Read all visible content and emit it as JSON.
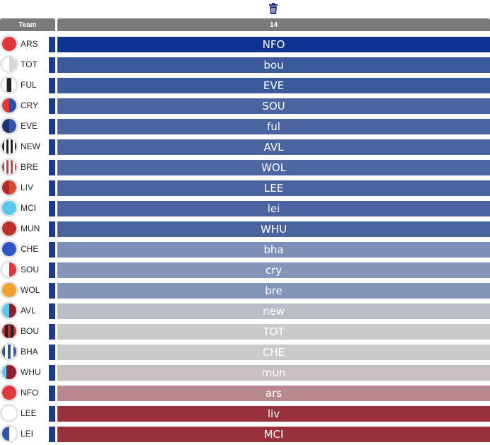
{
  "header": {
    "team_label": "Team",
    "column_label": "14"
  },
  "toolbar": {
    "delete_icon": "trash-icon"
  },
  "rows": [
    {
      "team": "ARS",
      "badge": "linear-gradient(#e0353b,#e0353b)",
      "opponent": "NFO",
      "color": "#0f3390"
    },
    {
      "team": "TOT",
      "badge": "linear-gradient(90deg,#ffffff 50%,#d8d8d8 50%)",
      "opponent": "bou",
      "color": "#3a5a9c"
    },
    {
      "team": "FUL",
      "badge": "linear-gradient(90deg,#ffffff 0 33%,#222222 33% 66%,#ffffff 66%)",
      "opponent": "EVE",
      "color": "#3a5a9c"
    },
    {
      "team": "CRY",
      "badge": "linear-gradient(90deg,#e0353b 50%,#2a4fa8 50%)",
      "opponent": "SOU",
      "color": "#4a64a0"
    },
    {
      "team": "EVE",
      "badge": "linear-gradient(90deg,#1e3470 50%,#2f55b0 50%)",
      "opponent": "ful",
      "color": "#4a64a0"
    },
    {
      "team": "NEW",
      "badge": "repeating-linear-gradient(90deg,#222222 0 3px,#ffffff 3px 6px)",
      "opponent": "AVL",
      "color": "#4a64a0"
    },
    {
      "team": "BRE",
      "badge": "repeating-linear-gradient(90deg,#e0353b 0 3px,#ffffff 3px 6px)",
      "opponent": "WOL",
      "color": "#4d67a2"
    },
    {
      "team": "LIV",
      "badge": "linear-gradient(90deg,#b02a26 50%,#d84a3a 50%)",
      "opponent": "LEE",
      "color": "#4a64a0"
    },
    {
      "team": "MCI",
      "badge": "linear-gradient(#5ac8ec,#5ac8ec)",
      "opponent": "lei",
      "color": "#4a64a0"
    },
    {
      "team": "MUN",
      "badge": "linear-gradient(#c0302c,#c0302c)",
      "opponent": "WHU",
      "color": "#4a64a0"
    },
    {
      "team": "CHE",
      "badge": "linear-gradient(#2f55c0,#2f55c0)",
      "opponent": "bha",
      "color": "#7c8fb6"
    },
    {
      "team": "SOU",
      "badge": "linear-gradient(90deg,#ffffff 50%,#e0353b 50%)",
      "opponent": "cry",
      "color": "#8595b8"
    },
    {
      "team": "WOL",
      "badge": "linear-gradient(#f3a030,#f3a030)",
      "opponent": "bre",
      "color": "#8595b8"
    },
    {
      "team": "AVL",
      "badge": "linear-gradient(90deg,#5ac8ec 50%,#8e1e2e 50%)",
      "opponent": "new",
      "color": "#b8bdc6"
    },
    {
      "team": "BOU",
      "badge": "repeating-linear-gradient(90deg,#c0302c 0 4px,#222222 4px 8px)",
      "opponent": "TOT",
      "color": "#cacaca"
    },
    {
      "team": "BHA",
      "badge": "repeating-linear-gradient(90deg,#2f55b0 0 4px,#ffffff 4px 8px)",
      "opponent": "CHE",
      "color": "#cacaca"
    },
    {
      "team": "WHU",
      "badge": "linear-gradient(90deg,#5ac8ec 0 30%,#8e1e2e 30%)",
      "opponent": "mun",
      "color": "#c8c0c0"
    },
    {
      "team": "NFO",
      "badge": "linear-gradient(#e0353b,#e0353b)",
      "opponent": "ars",
      "color": "#b8888e"
    },
    {
      "team": "LEE",
      "badge": "linear-gradient(#ffffff,#ffffff)",
      "opponent": "liv",
      "color": "#98303c"
    },
    {
      "team": "LEI",
      "badge": "linear-gradient(90deg,#2f55b0 50%,#ffffff 50%)",
      "opponent": "MCI",
      "color": "#98303c"
    }
  ]
}
